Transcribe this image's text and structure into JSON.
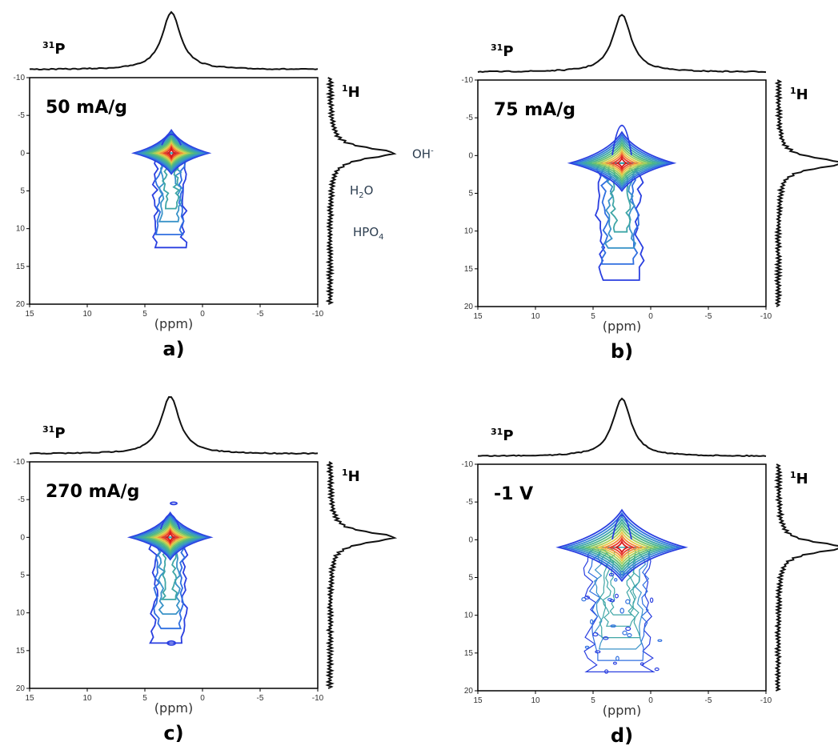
{
  "figure": {
    "nucleus_top_mass": "31",
    "nucleus_top_symbol": "P",
    "nucleus_side_mass": "1",
    "nucleus_side_symbol": "H",
    "annotations": [
      {
        "pre": "OH",
        "sub": "",
        "post": "",
        "sup": "-",
        "panel": 0
      },
      {
        "pre": "H",
        "sub": "2",
        "post": "O",
        "sup": "",
        "panel": 0
      },
      {
        "pre": "HPO",
        "sub": "4",
        "post": "",
        "sup": "",
        "panel": 0
      }
    ],
    "colors": {
      "contour_levels": [
        "#2a3fe0",
        "#2f6fe0",
        "#3a93c8",
        "#3fa6a6",
        "#49b48c",
        "#6cc070",
        "#a6d05c",
        "#e6c84a",
        "#f08a3a",
        "#e83a2a",
        "#d81818"
      ],
      "axes": "#000000",
      "projection": "#111111"
    }
  },
  "chart_data": [
    {
      "type": "2d-nmr-contour",
      "panel_label": "a)",
      "condition": "50 mA/g",
      "xlabel": "(ppm)",
      "xlim": [
        15,
        -10
      ],
      "ylim": [
        -10,
        20
      ],
      "x_ticks": [
        "15",
        "10",
        "5",
        "0",
        "-5",
        "-10"
      ],
      "y_ticks": [
        "-10",
        "-5",
        "0",
        "5",
        "10",
        "15",
        "20"
      ],
      "peak": {
        "x_ppm": 2.7,
        "y_ppm": 0.0
      },
      "contour_extent_ppm": {
        "x": [
          6.0,
          -0.5
        ],
        "y": [
          -3.5,
          12.5
        ]
      },
      "has_ylabel_annotations": true
    },
    {
      "type": "2d-nmr-contour",
      "panel_label": "b)",
      "condition": "75 mA/g",
      "xlabel": "(ppm)",
      "xlim": [
        15,
        -10
      ],
      "ylim": [
        -10,
        20
      ],
      "x_ticks": [
        "15",
        "10",
        "5",
        "0",
        "-5",
        "-10"
      ],
      "y_ticks": [
        "-10",
        "-5",
        "0",
        "5",
        "10",
        "15",
        "20"
      ],
      "peak": {
        "x_ppm": 2.5,
        "y_ppm": 1.0
      },
      "contour_extent_ppm": {
        "x": [
          7.5,
          -1.5
        ],
        "y": [
          -7.5,
          16.5
        ]
      },
      "has_ylabel_annotations": false
    },
    {
      "type": "2d-nmr-contour",
      "panel_label": "c)",
      "condition": "270 mA/g",
      "xlabel": "(ppm)",
      "xlim": [
        15,
        -10
      ],
      "ylim": [
        -10,
        20
      ],
      "x_ticks": [
        "15",
        "10",
        "5",
        "0",
        "-5",
        "-10"
      ],
      "y_ticks": [
        "-10",
        "-5",
        "0",
        "5",
        "10",
        "15",
        "20"
      ],
      "peak": {
        "x_ppm": 2.8,
        "y_ppm": 0.0
      },
      "contour_extent_ppm": {
        "x": [
          6.0,
          -1.0
        ],
        "y": [
          -4.5,
          14.0
        ]
      },
      "has_ylabel_annotations": false
    },
    {
      "type": "2d-nmr-contour",
      "panel_label": "d)",
      "condition": "-1 V",
      "xlabel": "(ppm)",
      "xlim": [
        15,
        -10
      ],
      "ylim": [
        -10,
        20
      ],
      "x_ticks": [
        "15",
        "10",
        "5",
        "0",
        "-5",
        "-10"
      ],
      "y_ticks": [
        "-10",
        "-5",
        "0",
        "5",
        "10",
        "15",
        "20"
      ],
      "peak": {
        "x_ppm": 2.5,
        "y_ppm": 1.0
      },
      "contour_extent_ppm": {
        "x": [
          6.5,
          -4.5
        ],
        "y": [
          -6.0,
          17.5
        ]
      },
      "has_ylabel_annotations": false
    }
  ]
}
